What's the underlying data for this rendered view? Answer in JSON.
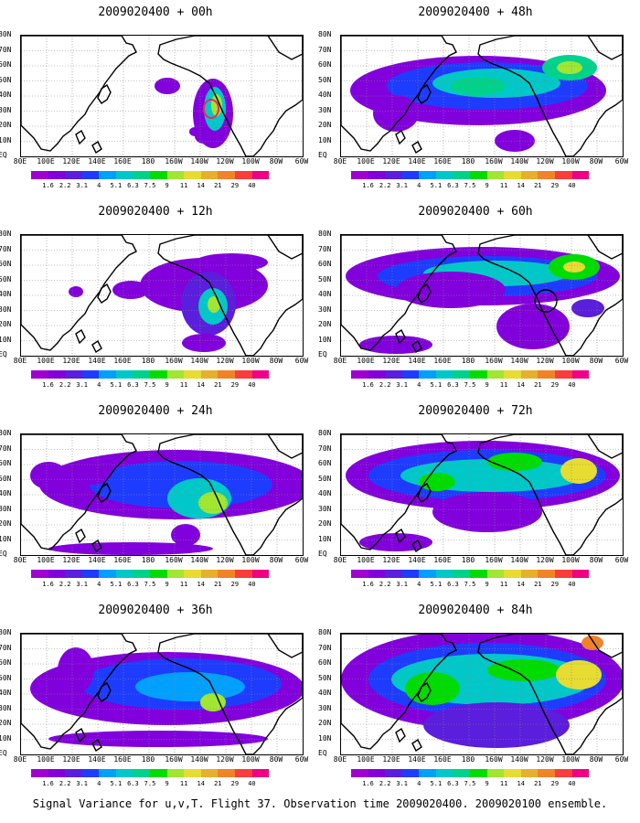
{
  "panels": [
    {
      "title": "2009020400 + 00h"
    },
    {
      "title": "2009020400 + 48h"
    },
    {
      "title": "2009020400 + 12h"
    },
    {
      "title": "2009020400 + 60h"
    },
    {
      "title": "2009020400 + 24h"
    },
    {
      "title": "2009020400 + 72h"
    },
    {
      "title": "2009020400 + 36h"
    },
    {
      "title": "2009020400 + 84h"
    }
  ],
  "lat_labels": [
    "80N",
    "70N",
    "60N",
    "50N",
    "40N",
    "30N",
    "20N",
    "10N",
    "EQ"
  ],
  "lon_labels": [
    "80E",
    "100E",
    "120E",
    "140E",
    "160E",
    "180",
    "160W",
    "140W",
    "120W",
    "100W",
    "80W",
    "60W"
  ],
  "colorbar": {
    "labels": [
      "1.6",
      "2.2",
      "3.1",
      "4",
      "5.1",
      "6.3",
      "7.5",
      "9",
      "11",
      "14",
      "21",
      "29",
      "40"
    ],
    "colors": [
      "#a000d0",
      "#8200dc",
      "#5a1edc",
      "#1e3cff",
      "#00a0ff",
      "#00c8c8",
      "#00d28c",
      "#00dc00",
      "#a0e632",
      "#e6dc32",
      "#e6af2d",
      "#f08228",
      "#fa3c3c",
      "#f00082"
    ]
  },
  "caption": "Signal Variance for u,v,T. Flight 37. Observation time 2009020400. 2009020100 ensemble."
}
